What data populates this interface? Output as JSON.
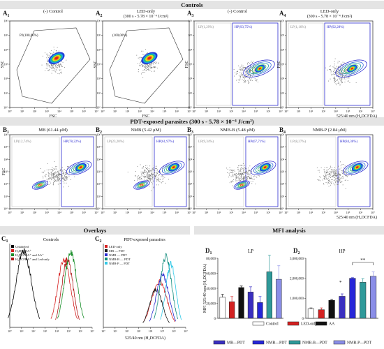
{
  "headers": {
    "top": "Controls",
    "middle": "PDT-exposed parasites (300 s - 5.78 × 10⁻⁴ J/cm²)",
    "overlays": "Overlays",
    "mfi": "MFI analysis"
  },
  "row1": [
    {
      "id": "A",
      "sub": "1",
      "title1": "(-) Control",
      "title2": "",
      "gate_label": "P2(100,00%)",
      "kind": "ssc"
    },
    {
      "id": "A",
      "sub": "2",
      "title1": "LED-only",
      "title2": "(300 s - 5.78 × 10⁻⁴ J/cm²)",
      "gate_label": "(100,00%)",
      "kind": "ssc"
    },
    {
      "id": "A",
      "sub": "3",
      "title1": "(-) Control",
      "title2": "",
      "lp": "LP(1,29%)",
      "hp": "HP(93,75%)",
      "kind": "fsc"
    },
    {
      "id": "A",
      "sub": "4",
      "title1": "LED-only",
      "title2": "(300 s - 5.78 × 10⁻⁴ J/cm²)",
      "lp": "LP(1,16%)",
      "hp": "HP(92,28%)",
      "kind": "fsc"
    }
  ],
  "row2": [
    {
      "id": "B",
      "sub": "1",
      "title1": "MB (61.44 μM)",
      "lp": "LP(12,74%)",
      "hp": "HP(78,22%)"
    },
    {
      "id": "B",
      "sub": "2",
      "title1": "NMB (5.42 μM)",
      "lp": "LP(23,20%)",
      "hp": "HP(61,97%)"
    },
    {
      "id": "B",
      "sub": "3",
      "title1": "NMB-B (5.48 μM)",
      "lp": "LP(9,34%)",
      "hp": "HP(67,71%)"
    },
    {
      "id": "B",
      "sub": "4",
      "title1": "NMB-P (2.84 μM)",
      "lp": "LP(8,27%)",
      "hp": "HP(84,36%)"
    }
  ],
  "axes": {
    "ssc": "SSC",
    "fsc": "FSC",
    "fl": "525/40 nm (H₂DCFDA)",
    "mfi_y": "MFI 525/40 nm (H₂DCFDA)"
  },
  "overlay_panels": {
    "c1": {
      "label": "C",
      "sub": "1",
      "title": "Controls",
      "legend": [
        "Unlabeled",
        "H₂DCFDA⁺",
        "H₂DCFDA⁺ and AA⁺",
        "H₂DCFDA⁺ and Led-only"
      ],
      "colors": [
        "#000000",
        "#d62020",
        "#1a8f2a",
        "#b01818"
      ]
    },
    "c2": {
      "label": "C",
      "sub": "2",
      "title": "PDT-exposed parasites",
      "legend": [
        "LED-only",
        "MB — PDT",
        "NMB — PDT",
        "NMB-B — PDT",
        "NMB-P — PDT"
      ],
      "colors": [
        "#d62020",
        "#1a1a1a",
        "#2a2ad0",
        "#0e8a7a",
        "#32c8e6"
      ]
    }
  },
  "chart_data": [
    {
      "type": "bar",
      "title": "LP",
      "label": "D",
      "sub": "1",
      "ylabel": "MFI 525/40 nm (H₂DCFDA)",
      "ylim": [
        0,
        80000
      ],
      "yticks": [
        "0",
        "20,000",
        "40,000",
        "60,000",
        "80,000"
      ],
      "categories": [
        "Control",
        "LED-only",
        "AA",
        "MB—PDT",
        "NMB—PDT",
        "NMB-B—PDT",
        "NMB-P—PDT"
      ],
      "values": [
        28000,
        22000,
        41000,
        35000,
        21000,
        62000,
        52000
      ],
      "errors": [
        4000,
        7000,
        2000,
        7000,
        8000,
        22000,
        18000
      ]
    },
    {
      "type": "bar",
      "title": "HP",
      "label": "D",
      "sub": "2",
      "ylim": [
        0,
        3000000
      ],
      "yticks": [
        "0",
        "1,000,000",
        "2,000,000",
        "3,000,000"
      ],
      "categories": [
        "Control",
        "LED-only",
        "AA",
        "MB—PDT",
        "NMB—PDT",
        "NMB-B—PDT",
        "NMB-P—PDT"
      ],
      "values": [
        480000,
        430000,
        900000,
        1100000,
        2000000,
        1800000,
        2100000
      ],
      "errors": [
        40000,
        90000,
        40000,
        120000,
        30000,
        180000,
        220000
      ],
      "annotations": [
        "*",
        "**"
      ]
    }
  ],
  "legend_bottom": {
    "items": [
      {
        "label": "Control",
        "color": "#ffffff"
      },
      {
        "label": "LED-only",
        "color": "#d32121"
      },
      {
        "label": "AA",
        "color": "#111111"
      },
      {
        "label": "MB—PDT",
        "color": "#3a2fc0"
      },
      {
        "label": "NMB—PDT",
        "color": "#2626d8"
      },
      {
        "label": "NMB-B—PDT",
        "color": "#2f9a9a"
      },
      {
        "label": "NMB-P—PDT",
        "color": "#8a8ee8"
      }
    ]
  }
}
